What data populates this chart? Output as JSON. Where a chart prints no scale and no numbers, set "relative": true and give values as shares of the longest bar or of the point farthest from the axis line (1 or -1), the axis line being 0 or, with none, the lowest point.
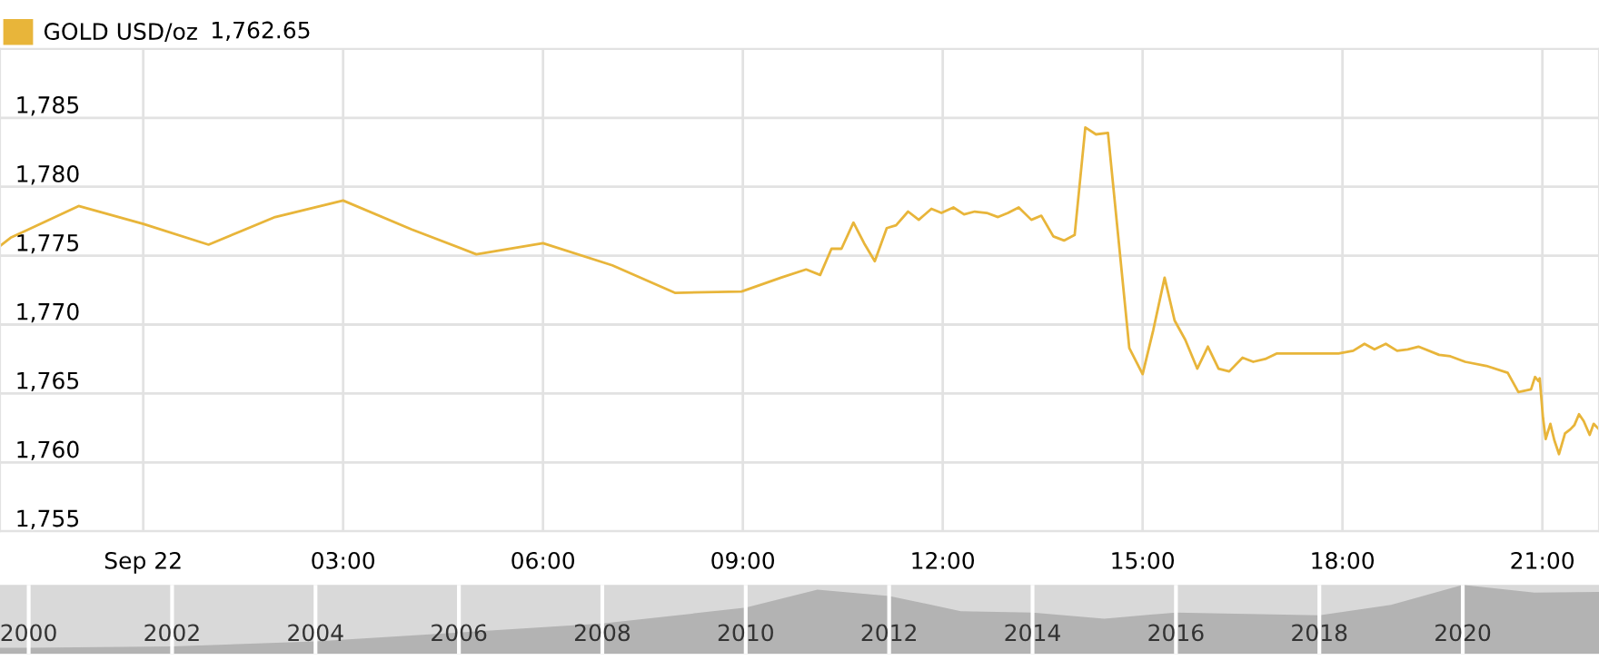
{
  "chart_data": [
    {
      "type": "line",
      "legend": "top left",
      "grid": true,
      "marker": "none",
      "line_style": "solid",
      "annotations": [
        "1,762.65"
      ],
      "xlim": [
        -2.15,
        21.85
      ],
      "ylim": [
        1755,
        1790
      ],
      "xticks": [
        {
          "value": 0,
          "label": "Sep 22"
        },
        {
          "value": 3,
          "label": "03:00"
        },
        {
          "value": 6,
          "label": "06:00"
        },
        {
          "value": 9,
          "label": "09:00"
        },
        {
          "value": 12,
          "label": "12:00"
        },
        {
          "value": 15,
          "label": "15:00"
        },
        {
          "value": 18,
          "label": "18:00"
        },
        {
          "value": 21,
          "label": "21:00"
        }
      ],
      "yticks": [
        {
          "value": 1755,
          "label": "1,755"
        },
        {
          "value": 1760,
          "label": "1,760"
        },
        {
          "value": 1765,
          "label": "1,765"
        },
        {
          "value": 1770,
          "label": "1,770"
        },
        {
          "value": 1775,
          "label": "1,775"
        },
        {
          "value": 1780,
          "label": "1,780"
        },
        {
          "value": 1785,
          "label": "1,785"
        }
      ],
      "series": [
        {
          "name": "GOLD USD/oz",
          "color": "#e8b53a",
          "x": [
            -2.15,
            -1.99,
            -0.97,
            0,
            0.98,
            1.98,
            3.0,
            4.03,
            5.0,
            6.0,
            7.04,
            7.98,
            8.98,
            9.57,
            9.95,
            10.16,
            10.33,
            10.48,
            10.66,
            10.82,
            10.98,
            11.16,
            11.3,
            11.48,
            11.64,
            11.83,
            11.98,
            12.16,
            12.32,
            12.48,
            12.66,
            12.83,
            12.98,
            13.14,
            13.33,
            13.48,
            13.66,
            13.82,
            13.98,
            14.14,
            14.3,
            14.48,
            14.8,
            15.0,
            15.16,
            15.33,
            15.48,
            15.64,
            15.82,
            15.98,
            16.14,
            16.3,
            16.5,
            16.66,
            16.84,
            17.01,
            17.94,
            18.16,
            18.33,
            18.48,
            18.65,
            18.82,
            18.98,
            19.14,
            19.45,
            19.62,
            19.84,
            20.16,
            20.48,
            20.64,
            20.83,
            20.89,
            20.94,
            20.96,
            21.01,
            21.05,
            21.12,
            21.18,
            21.25,
            21.34,
            21.42,
            21.48,
            21.55,
            21.62,
            21.71,
            21.77,
            21.85
          ],
          "values": [
            1775.7,
            1776.3,
            1778.6,
            1777.3,
            1775.8,
            1777.8,
            1779.0,
            1776.9,
            1775.1,
            1775.9,
            1774.3,
            1772.3,
            1772.4,
            1773.4,
            1774.0,
            1773.6,
            1775.5,
            1775.5,
            1777.4,
            1775.9,
            1774.6,
            1777.0,
            1777.2,
            1778.2,
            1777.6,
            1778.4,
            1778.1,
            1778.5,
            1778.0,
            1778.2,
            1778.1,
            1777.8,
            1778.1,
            1778.5,
            1777.6,
            1777.9,
            1776.4,
            1776.1,
            1776.5,
            1784.3,
            1783.8,
            1783.9,
            1768.3,
            1766.4,
            1769.6,
            1773.4,
            1770.3,
            1768.9,
            1766.8,
            1768.4,
            1766.8,
            1766.6,
            1767.6,
            1767.3,
            1767.5,
            1767.9,
            1767.9,
            1768.1,
            1768.6,
            1768.2,
            1768.6,
            1768.1,
            1768.2,
            1768.4,
            1767.8,
            1767.7,
            1767.3,
            1767.0,
            1766.5,
            1765.1,
            1765.3,
            1766.2,
            1765.9,
            1766.1,
            1763.2,
            1761.7,
            1762.8,
            1761.6,
            1760.6,
            1762.1,
            1762.4,
            1762.7,
            1763.5,
            1763.0,
            1762.0,
            1762.8,
            1762.4
          ]
        }
      ]
    },
    {
      "type": "area",
      "relative": true,
      "grid": "x",
      "tick_labels": "x",
      "xlim": [
        1999.6,
        2021.9
      ],
      "xticks": [
        2000,
        2002,
        2004,
        2006,
        2008,
        2010,
        2012,
        2014,
        2016,
        2018,
        2020
      ],
      "series": [
        {
          "color": "#b3b3b3",
          "x": [
            1999.6,
            2000,
            2002,
            2004,
            2006,
            2008,
            2010,
            2011,
            2012,
            2013,
            2014,
            2015,
            2016,
            2017,
            2018,
            2019,
            2020,
            2021,
            2021.9
          ],
          "values": [
            0.09,
            0.09,
            0.11,
            0.18,
            0.31,
            0.44,
            0.67,
            0.93,
            0.84,
            0.62,
            0.6,
            0.51,
            0.6,
            0.58,
            0.56,
            0.71,
            1,
            0.89,
            0.9
          ]
        }
      ]
    }
  ]
}
